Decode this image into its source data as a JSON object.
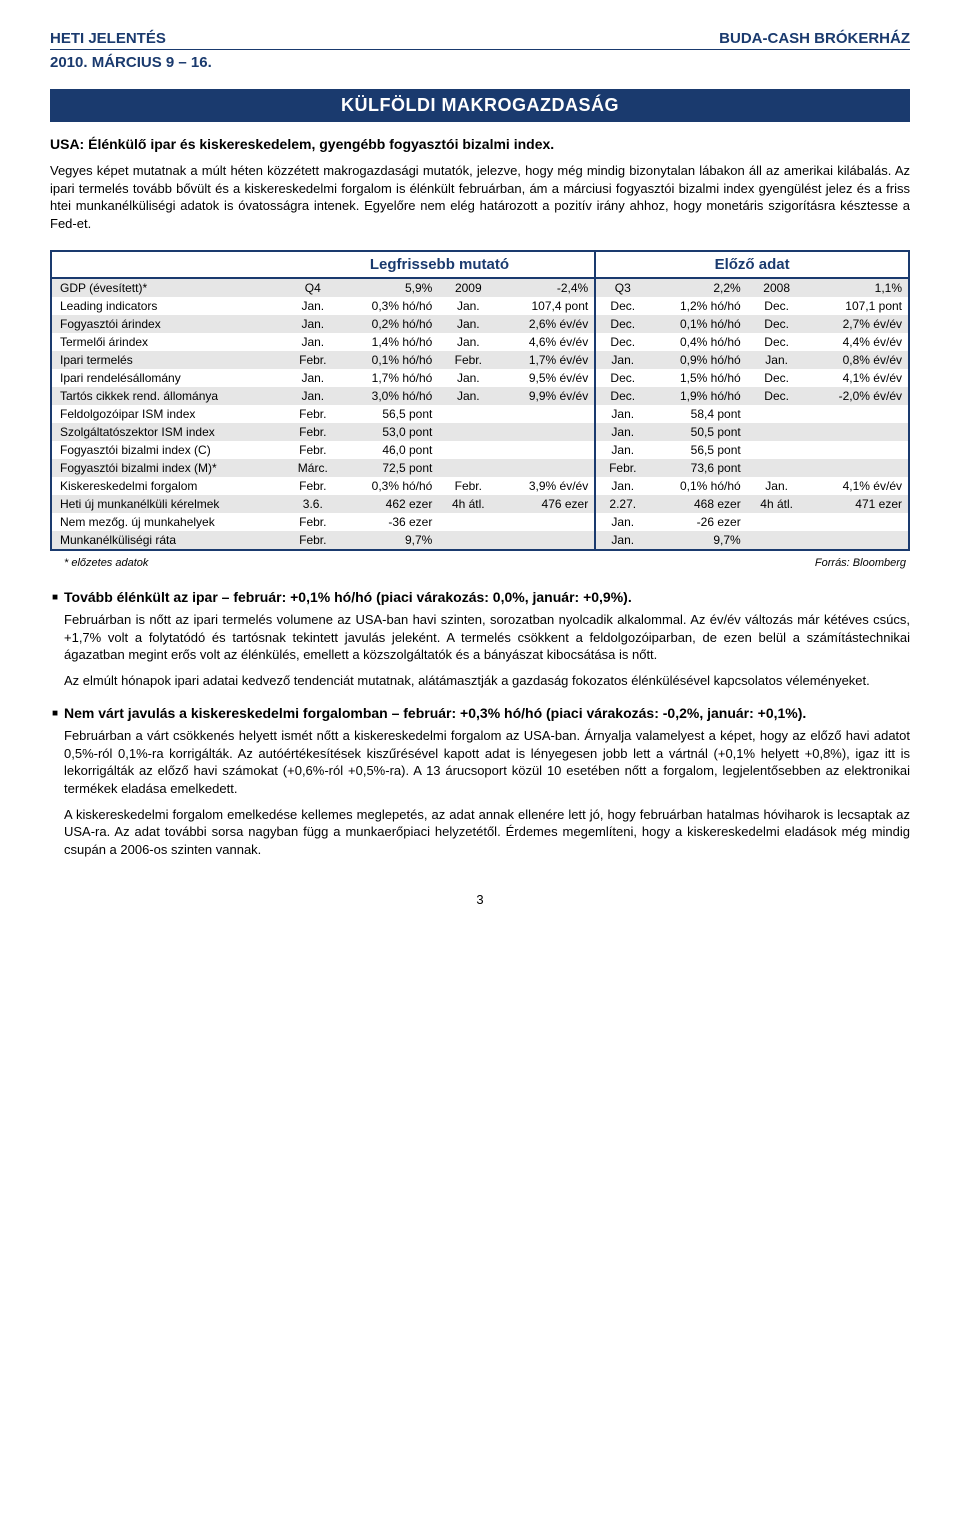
{
  "header": {
    "left": "HETI JELENTÉS",
    "right": "BUDA-CASH BRÓKERHÁZ",
    "date": "2010. MÁRCIUS 9 – 16."
  },
  "banner": "KÜLFÖLDI MAKROGAZDASÁG",
  "intro": {
    "title": "USA: Élénkülő ipar és kiskereskedelem, gyengébb fogyasztói bizalmi index.",
    "body": "Vegyes képet mutatnak a múlt héten közzétett makrogazdasági mutatók, jelezve, hogy még mindig bizonytalan lábakon áll az amerikai kilábalás. Az ipari termelés tovább bővült és a kiskereskedelmi forgalom is élénkült februárban, ám a márciusi fogyasztói bizalmi index gyengülést jelez és a friss htei munkanélküliségi adatok is óvatosságra intenek. Egyelőre nem elég határozott a pozitív irány ahhoz, hogy monetáris szigorításra késztesse a Fed-et."
  },
  "table": {
    "head_a": "Legfrissebb mutató",
    "head_b": "Előző adat",
    "rows": [
      {
        "shade": true,
        "lbl": "GDP (évesített)*",
        "a1": "Q4",
        "a2": "5,9%",
        "a3": "2009",
        "a4": "-2,4%",
        "b1": "Q3",
        "b2": "2,2%",
        "b3": "2008",
        "b4": "1,1%"
      },
      {
        "shade": false,
        "lbl": "Leading indicators",
        "a1": "Jan.",
        "a2": "0,3% hó/hó",
        "a3": "Jan.",
        "a4": "107,4 pont",
        "b1": "Dec.",
        "b2": "1,2% hó/hó",
        "b3": "Dec.",
        "b4": "107,1 pont"
      },
      {
        "shade": true,
        "lbl": "Fogyasztói árindex",
        "a1": "Jan.",
        "a2": "0,2% hó/hó",
        "a3": "Jan.",
        "a4": "2,6% év/év",
        "b1": "Dec.",
        "b2": "0,1% hó/hó",
        "b3": "Dec.",
        "b4": "2,7% év/év"
      },
      {
        "shade": false,
        "lbl": "Termelői árindex",
        "a1": "Jan.",
        "a2": "1,4% hó/hó",
        "a3": "Jan.",
        "a4": "4,6% év/év",
        "b1": "Dec.",
        "b2": "0,4% hó/hó",
        "b3": "Dec.",
        "b4": "4,4% év/év"
      },
      {
        "shade": true,
        "lbl": "Ipari termelés",
        "a1": "Febr.",
        "a2": "0,1% hó/hó",
        "a3": "Febr.",
        "a4": "1,7% év/év",
        "b1": "Jan.",
        "b2": "0,9% hó/hó",
        "b3": "Jan.",
        "b4": "0,8% év/év"
      },
      {
        "shade": false,
        "lbl": "Ipari rendelésállomány",
        "a1": "Jan.",
        "a2": "1,7% hó/hó",
        "a3": "Jan.",
        "a4": "9,5% év/év",
        "b1": "Dec.",
        "b2": "1,5% hó/hó",
        "b3": "Dec.",
        "b4": "4,1% év/év"
      },
      {
        "shade": true,
        "lbl": "Tartós cikkek rend. állománya",
        "a1": "Jan.",
        "a2": "3,0% hó/hó",
        "a3": "Jan.",
        "a4": "9,9% év/év",
        "b1": "Dec.",
        "b2": "1,9% hó/hó",
        "b3": "Dec.",
        "b4": "-2,0% év/év"
      },
      {
        "shade": false,
        "lbl": "Feldolgozóipar ISM index",
        "a1": "Febr.",
        "a2": "56,5 pont",
        "a3": "",
        "a4": "",
        "b1": "Jan.",
        "b2": "58,4 pont",
        "b3": "",
        "b4": ""
      },
      {
        "shade": true,
        "lbl": "Szolgáltatószektor ISM index",
        "a1": "Febr.",
        "a2": "53,0 pont",
        "a3": "",
        "a4": "",
        "b1": "Jan.",
        "b2": "50,5 pont",
        "b3": "",
        "b4": ""
      },
      {
        "shade": false,
        "lbl": "Fogyasztói bizalmi index (C)",
        "a1": "Febr.",
        "a2": "46,0 pont",
        "a3": "",
        "a4": "",
        "b1": "Jan.",
        "b2": "56,5 pont",
        "b3": "",
        "b4": ""
      },
      {
        "shade": true,
        "lbl": "Fogyasztói bizalmi index (M)*",
        "a1": "Márc.",
        "a2": "72,5 pont",
        "a3": "",
        "a4": "",
        "b1": "Febr.",
        "b2": "73,6 pont",
        "b3": "",
        "b4": ""
      },
      {
        "shade": false,
        "lbl": "Kiskereskedelmi forgalom",
        "a1": "Febr.",
        "a2": "0,3% hó/hó",
        "a3": "Febr.",
        "a4": "3,9% év/év",
        "b1": "Jan.",
        "b2": "0,1% hó/hó",
        "b3": "Jan.",
        "b4": "4,1% év/év"
      },
      {
        "shade": true,
        "lbl": "Heti új munkanélküli kérelmek",
        "a1": "3.6.",
        "a2": "462 ezer",
        "a3": "4h átl.",
        "a4": "476 ezer",
        "b1": "2.27.",
        "b2": "468 ezer",
        "b3": "4h átl.",
        "b4": "471 ezer"
      },
      {
        "shade": false,
        "lbl": "Nem mezőg. új munkahelyek",
        "a1": "Febr.",
        "a2": "-36 ezer",
        "a3": "",
        "a4": "",
        "b1": "Jan.",
        "b2": "-26 ezer",
        "b3": "",
        "b4": ""
      },
      {
        "shade": true,
        "lbl": "Munkanélküliségi ráta",
        "a1": "Febr.",
        "a2": "9,7%",
        "a3": "",
        "a4": "",
        "b1": "Jan.",
        "b2": "9,7%",
        "b3": "",
        "b4": ""
      }
    ]
  },
  "footnote": {
    "left": "* előzetes adatok",
    "right": "Forrás: Bloomberg"
  },
  "bullets": [
    {
      "title": "Tovább élénkült az ipar – február: +0,1% hó/hó (piaci várakozás: 0,0%, január: +0,9%).",
      "paras": [
        "Februárban is nőtt az ipari termelés volumene az USA-ban havi szinten, sorozatban nyolcadik alkalommal. Az év/év változás már kétéves csúcs, +1,7% volt a folytatódó és tartósnak tekintett javulás jeleként. A termelés csökkent a feldolgozóiparban, de ezen belül a számítástechnikai ágazatban megint erős volt az élénkülés, emellett a közszolgáltatók és a bányászat kibocsátása is nőtt.",
        "Az elmúlt hónapok ipari adatai kedvező tendenciát mutatnak, alátámasztják a gazdaság fokozatos élénkülésével kapcsolatos véleményeket."
      ]
    },
    {
      "title": "Nem várt javulás a kiskereskedelmi forgalomban – február: +0,3% hó/hó (piaci várakozás: -0,2%, január: +0,1%).",
      "paras": [
        "Februárban a várt csökkenés helyett ismét nőtt a kiskereskedelmi forgalom az USA-ban. Árnyalja valamelyest a képet, hogy az előző havi adatot 0,5%-ról 0,1%-ra korrigálták. Az autóértékesítések kiszűrésével kapott adat is lényegesen jobb lett a vártnál (+0,1% helyett +0,8%), igaz itt is lekorrigálták az előző havi számokat (+0,6%-ról +0,5%-ra). A 13 árucsoport közül 10 esetében nőtt a forgalom, legjelentősebben az elektronikai termékek eladása emelkedett.",
        "A kiskereskedelmi forgalom emelkedése kellemes meglepetés, az adat annak ellenére lett jó, hogy februárban hatalmas hóviharok is lecsaptak az USA-ra. Az adat további sorsa nagyban függ a munkaerőpiaci helyzetétől. Érdemes megemlíteni, hogy a kiskereskedelmi eladások még mindig csupán a 2006-os szinten vannak."
      ]
    }
  ],
  "page_num": "3"
}
